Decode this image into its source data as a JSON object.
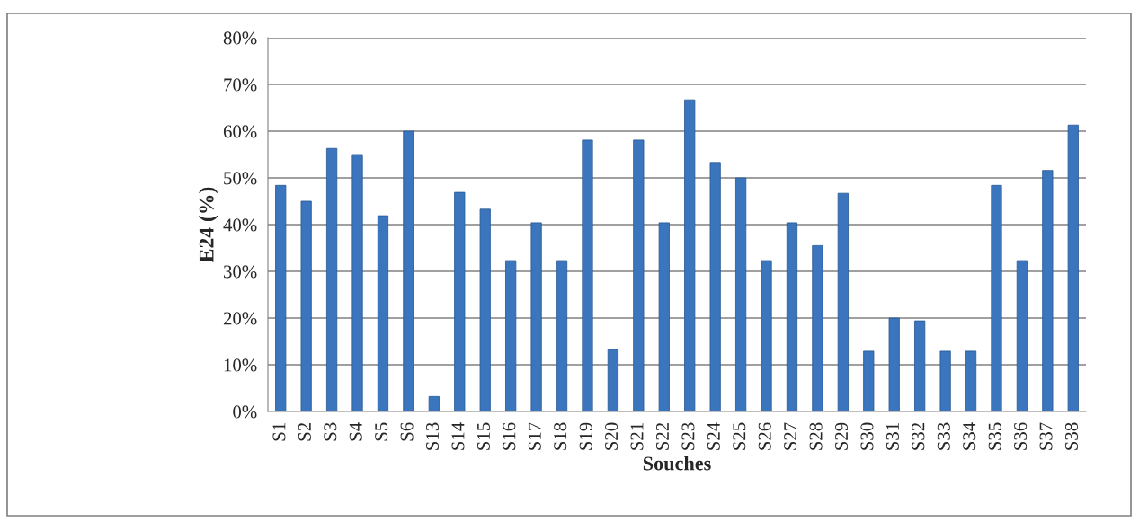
{
  "chart_data": {
    "type": "bar",
    "xlabel": "Souches",
    "ylabel": "E24 (%)",
    "categories": [
      "S1",
      "S2",
      "S3",
      "S4",
      "S5",
      "S6",
      "S13",
      "S14",
      "S15",
      "S16",
      "S17",
      "S18",
      "S19",
      "S20",
      "S21",
      "S22",
      "S23",
      "S24",
      "S25",
      "S26",
      "S27",
      "S28",
      "S29",
      "S30",
      "S31",
      "S32",
      "S33",
      "S34",
      "S35",
      "S36",
      "S37",
      "S38"
    ],
    "values": [
      48.4,
      45,
      56.3,
      55,
      41.9,
      60,
      3.2,
      46.9,
      43.3,
      32.3,
      40.4,
      32.3,
      58.1,
      13.3,
      58.1,
      40.4,
      66.7,
      53.3,
      50,
      32.3,
      40.4,
      35.5,
      46.7,
      12.9,
      20,
      19.4,
      12.9,
      12.9,
      48.4,
      32.3,
      51.6,
      61.3
    ],
    "color": "#3a75bd",
    "ylim": [
      0,
      80
    ],
    "yticks": [
      {
        "value": 0,
        "label": "0%"
      },
      {
        "value": 10,
        "label": "10%"
      },
      {
        "value": 20,
        "label": "20%"
      },
      {
        "value": 30,
        "label": "30%"
      },
      {
        "value": 40,
        "label": "40%"
      },
      {
        "value": 50,
        "label": "50%"
      },
      {
        "value": 60,
        "label": "60%"
      },
      {
        "value": 70,
        "label": "70%"
      },
      {
        "value": 80,
        "label": "80%"
      }
    ],
    "grid": "y",
    "legend": false
  }
}
